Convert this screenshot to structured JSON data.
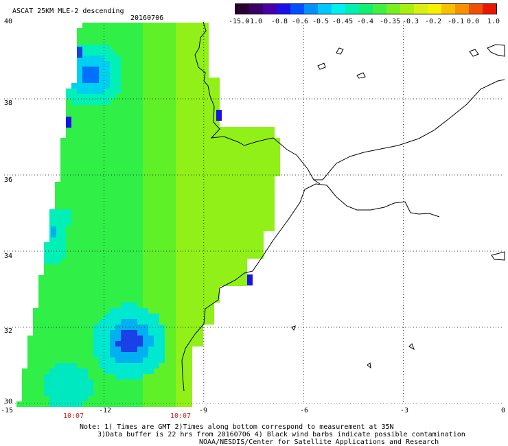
{
  "header": {
    "title": "ASCAT 25KM MLE-2 descending",
    "date": "20160706"
  },
  "colorbar": {
    "labels": [
      "-15.0",
      "-1.0",
      "-0.8",
      "-0.6",
      "-0.5",
      "-0.45",
      "-0.4",
      "-0.35",
      "-0.3",
      "-0.2",
      "-0.1",
      "0.0",
      "1.0"
    ],
    "colors": [
      "#2a0032",
      "#3a0066",
      "#4a00a8",
      "#1a10e8",
      "#0050ff",
      "#0090ff",
      "#00c8ff",
      "#00f0f0",
      "#00f0b0",
      "#10f070",
      "#40f040",
      "#78f020",
      "#a8f010",
      "#d8f010",
      "#f8f000",
      "#f8c000",
      "#f89000",
      "#f05000",
      "#e81800"
    ],
    "range_min": -15.0,
    "range_max": 1.0
  },
  "map": {
    "lat_ticks": [
      "40",
      "38",
      "36",
      "34",
      "32",
      "30"
    ],
    "lon_ticks": [
      "-15",
      "-12",
      "-9",
      "-6",
      "-3",
      "0"
    ],
    "lon_range": [
      -15,
      0
    ],
    "lat_range": [
      30,
      40
    ],
    "pass_times": [
      "10:07",
      "10:07"
    ]
  },
  "notes": {
    "line1": "Note: 1) Times are GMT 2)Times along bottom correspond to measurement at 35N",
    "line2": "3)Data buffer is 22 hrs from 20160706 4) Black wind barbs indicate possible contamination",
    "line3": "NOAA/NESDIS/Center for Satellite Applications and Research"
  }
}
